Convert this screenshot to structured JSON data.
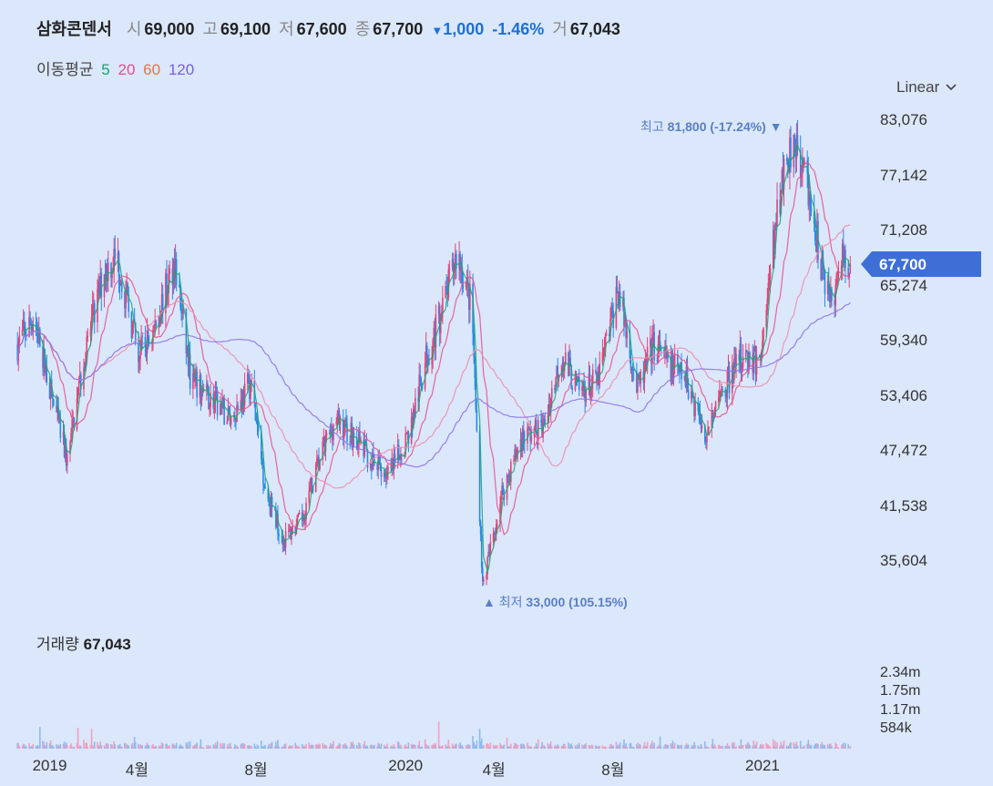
{
  "header": {
    "name": "삼화콘덴서",
    "open_label": "시",
    "open": "69,000",
    "high_label": "고",
    "high": "69,100",
    "low_label": "저",
    "low": "67,600",
    "close_label": "종",
    "close": "67,700",
    "change": "1,000",
    "change_pct": "-1.46%",
    "volume_label": "거",
    "volume": "67,043"
  },
  "ma_legend": {
    "label": "이동평균",
    "p5": "5",
    "p20": "20",
    "p60": "60",
    "p120": "120"
  },
  "scale_selector": {
    "label": "Linear"
  },
  "current_price": "67,700",
  "annotations": {
    "high_label": "최고",
    "high_value": "81,800 (-17.24%)",
    "low_label": "최저",
    "low_value": "33,000 (105.15%)"
  },
  "volume_panel": {
    "label": "거래량",
    "value": "67,043"
  },
  "colors": {
    "background": "#dbe7fb",
    "up": "#e0457b",
    "down": "#2a8ae8",
    "ma5": "#15a86a",
    "ma20": "#e64d8a",
    "ma60": "#f08aa8",
    "ma120": "#8b6fe6",
    "badge": "#3d6fd6",
    "annotation": "#5a7fc6"
  },
  "chart_data": {
    "type": "line",
    "subtype": "candlestick-with-volume",
    "ylim": [
      29670,
      87000
    ],
    "yticks": [
      "83,076",
      "77,142",
      "71,208",
      "65,274",
      "59,340",
      "53,406",
      "47,472",
      "41,538",
      "35,604"
    ],
    "ytick_values": [
      83076,
      77142,
      71208,
      65274,
      59340,
      53406,
      47472,
      41538,
      35604
    ],
    "volume_ticks": [
      "2.34m",
      "1.75m",
      "1.17m",
      "584k"
    ],
    "volume_tick_values": [
      2340000,
      1750000,
      1170000,
      584000
    ],
    "volume_max": 2900000,
    "xlim": [
      "2018-11-25",
      "2021-04-10"
    ],
    "xticks": [
      "2019",
      "4월",
      "8월",
      "2020",
      "4월",
      "8월",
      "2021"
    ],
    "xtick_dates": [
      "2019-01-01",
      "2019-04-01",
      "2019-08-01",
      "2020-01-01",
      "2020-04-01",
      "2020-08-01",
      "2021-01-01"
    ],
    "price_path": [
      [
        "2018-11-28",
        59000
      ],
      [
        "2018-12-15",
        62000
      ],
      [
        "2019-01-05",
        52000
      ],
      [
        "2019-01-18",
        46500
      ],
      [
        "2019-02-05",
        58000
      ],
      [
        "2019-02-25",
        67000
      ],
      [
        "2019-03-10",
        68500
      ],
      [
        "2019-04-01",
        58000
      ],
      [
        "2019-04-15",
        60000
      ],
      [
        "2019-05-08",
        68000
      ],
      [
        "2019-05-25",
        55000
      ],
      [
        "2019-06-15",
        53000
      ],
      [
        "2019-07-05",
        51000
      ],
      [
        "2019-07-25",
        55000
      ],
      [
        "2019-08-10",
        43000
      ],
      [
        "2019-08-28",
        38000
      ],
      [
        "2019-09-15",
        40000
      ],
      [
        "2019-10-05",
        47000
      ],
      [
        "2019-10-20",
        51000
      ],
      [
        "2019-11-10",
        49000
      ],
      [
        "2019-11-28",
        46000
      ],
      [
        "2019-12-15",
        45000
      ],
      [
        "2020-01-05",
        50000
      ],
      [
        "2020-01-22",
        58000
      ],
      [
        "2020-02-05",
        62000
      ],
      [
        "2020-02-22",
        69000
      ],
      [
        "2020-03-08",
        63000
      ],
      [
        "2020-03-19",
        33000
      ],
      [
        "2020-04-08",
        43000
      ],
      [
        "2020-04-28",
        49000
      ],
      [
        "2020-05-20",
        50000
      ],
      [
        "2020-06-08",
        58000
      ],
      [
        "2020-06-25",
        54000
      ],
      [
        "2020-07-15",
        55000
      ],
      [
        "2020-08-05",
        65000
      ],
      [
        "2020-08-25",
        54000
      ],
      [
        "2020-09-10",
        59000
      ],
      [
        "2020-09-25",
        57000
      ],
      [
        "2020-10-15",
        55000
      ],
      [
        "2020-11-02",
        49500
      ],
      [
        "2020-11-25",
        55000
      ],
      [
        "2020-12-10",
        58000
      ],
      [
        "2020-12-28",
        57000
      ],
      [
        "2021-01-08",
        67000
      ],
      [
        "2021-01-20",
        77000
      ],
      [
        "2021-02-02",
        81800
      ],
      [
        "2021-02-15",
        76000
      ],
      [
        "2021-03-01",
        68000
      ],
      [
        "2021-03-10",
        63000
      ],
      [
        "2021-03-22",
        68000
      ],
      [
        "2021-03-31",
        67700
      ]
    ],
    "series": [
      {
        "name": "5",
        "window": 5
      },
      {
        "name": "20",
        "window": 20
      },
      {
        "name": "60",
        "window": 60
      },
      {
        "name": "120",
        "window": 120
      }
    ],
    "annotations": [
      {
        "label": "최고 81,800 (-17.24%)",
        "date": "2021-02-02",
        "value": 81800
      },
      {
        "label": "최저 33,000 (105.15%)",
        "date": "2020-03-19",
        "value": 33000
      }
    ],
    "last_price": 67700
  }
}
